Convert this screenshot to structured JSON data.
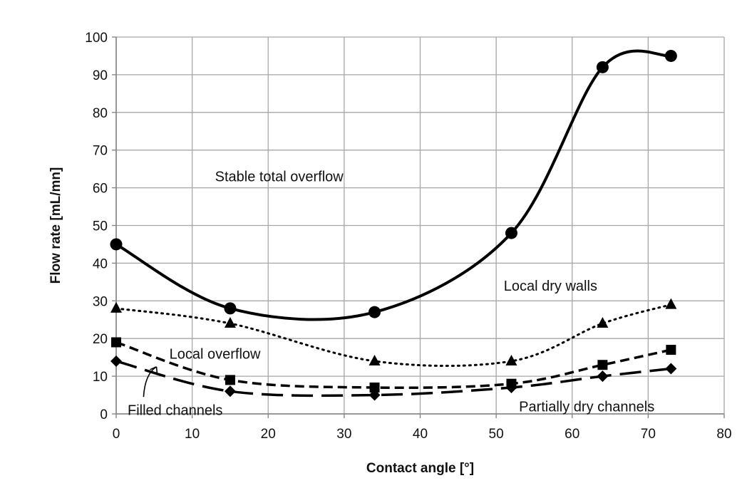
{
  "chart_data": {
    "type": "line",
    "title": "",
    "xlabel": "Contact angle [°]",
    "ylabel": "Flow rate [mL/mn]",
    "xlim": [
      0,
      80
    ],
    "ylim": [
      0,
      100
    ],
    "xticks": [
      0,
      10,
      20,
      30,
      40,
      50,
      60,
      70,
      80
    ],
    "yticks": [
      0,
      10,
      20,
      30,
      40,
      50,
      60,
      70,
      80,
      90,
      100
    ],
    "grid": true,
    "legend": "none",
    "series": [
      {
        "marker": "circle",
        "line": "solid",
        "color": "#000000",
        "x": [
          0,
          15,
          34,
          52,
          64,
          73
        ],
        "y": [
          45,
          28,
          27,
          48,
          92,
          95
        ]
      },
      {
        "marker": "triangle",
        "line": "dotted",
        "color": "#000000",
        "x": [
          0,
          15,
          34,
          52,
          64,
          73
        ],
        "y": [
          28,
          24,
          14,
          14,
          24,
          29
        ]
      },
      {
        "marker": "square",
        "line": "short-dash",
        "color": "#000000",
        "x": [
          0,
          15,
          34,
          52,
          64,
          73
        ],
        "y": [
          19,
          9,
          7,
          8,
          13,
          17
        ]
      },
      {
        "marker": "diamond",
        "line": "long-dash",
        "color": "#000000",
        "x": [
          0,
          15,
          34,
          52,
          64,
          73
        ],
        "y": [
          14,
          6,
          5,
          7,
          10,
          12
        ]
      }
    ],
    "annotations": [
      {
        "text": "Stable total overflow",
        "x": 13,
        "y": 63
      },
      {
        "text": "Local dry walls",
        "x": 51,
        "y": 34
      },
      {
        "text": "Local overflow",
        "x": 7,
        "y": 16
      },
      {
        "text": "Filled channels",
        "x": 1.5,
        "y": 1
      },
      {
        "text": "Partially dry channels",
        "x": 53,
        "y": 2
      }
    ]
  }
}
